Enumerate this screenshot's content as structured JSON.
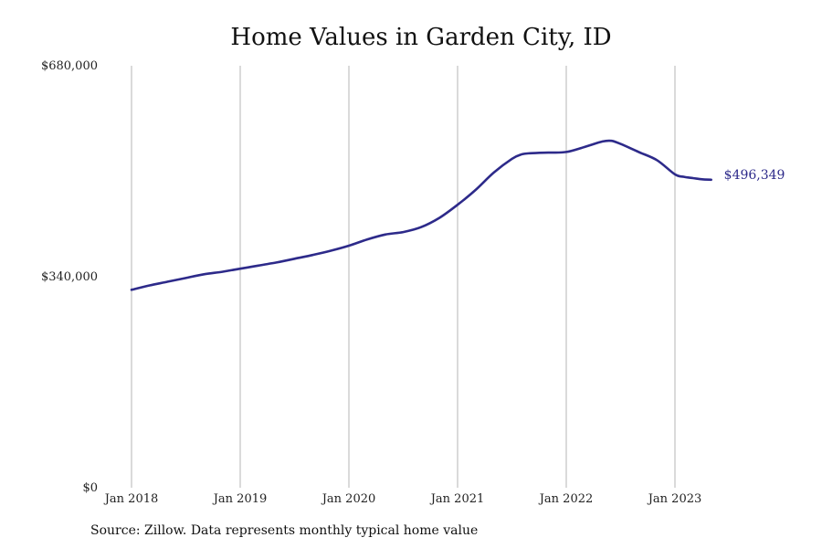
{
  "chart_data": {
    "type": "line",
    "title": "Home Values in Garden City, ID",
    "xlabel": "",
    "ylabel": "",
    "ylim": [
      0,
      680000
    ],
    "xlim": [
      "2018-01",
      "2023-12"
    ],
    "y_ticks": [
      "$0",
      "$340,000",
      "$680,000"
    ],
    "y_tick_values": [
      0,
      340000,
      680000
    ],
    "x_ticks": [
      "Jan 2018",
      "Jan 2019",
      "Jan 2020",
      "Jan 2021",
      "Jan 2022",
      "Jan 2023"
    ],
    "x_tick_values": [
      "2018-01",
      "2019-01",
      "2020-01",
      "2021-01",
      "2022-01",
      "2023-01"
    ],
    "grid": "vertical",
    "line_color": "#2d2a8a",
    "series": [
      {
        "x": [
          "2018-01",
          "2018-03",
          "2018-05",
          "2018-07",
          "2018-09",
          "2018-11",
          "2019-01",
          "2019-03",
          "2019-05",
          "2019-07",
          "2019-09",
          "2019-11",
          "2020-01",
          "2020-03",
          "2020-05",
          "2020-07",
          "2020-09",
          "2020-11",
          "2021-01",
          "2021-03",
          "2021-05",
          "2021-07",
          "2021-08",
          "2021-09",
          "2021-11",
          "2022-01",
          "2022-03",
          "2022-05",
          "2022-06",
          "2022-07",
          "2022-09",
          "2022-11",
          "2023-01",
          "2023-02",
          "2023-03",
          "2023-04",
          "2023-05"
        ],
        "values": [
          319000,
          326000,
          332000,
          338000,
          344000,
          348000,
          353000,
          358000,
          363000,
          369000,
          375000,
          382000,
          390000,
          400000,
          408000,
          412000,
          420000,
          435000,
          456000,
          480000,
          508000,
          530000,
          537000,
          539000,
          540000,
          541000,
          549000,
          558000,
          559000,
          554000,
          541000,
          528000,
          505000,
          501000,
          499000,
          497000,
          496349
        ]
      }
    ],
    "end_label": "$496,349"
  },
  "footer": {
    "source": "Source: Zillow. Data represents monthly typical home value"
  }
}
